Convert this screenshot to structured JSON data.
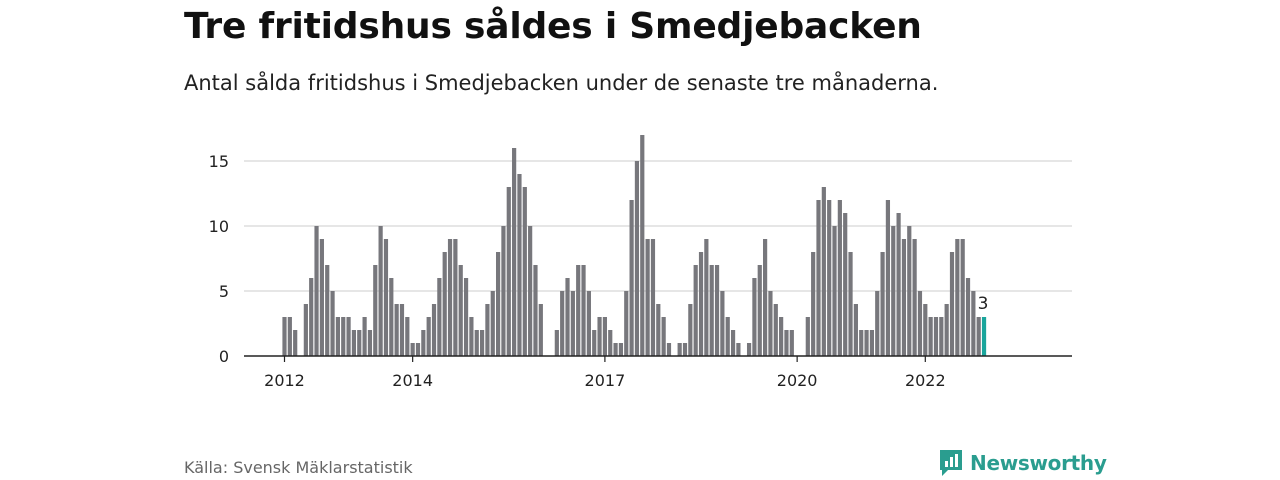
{
  "title": "Tre fritidshus såldes i Smedjebacken",
  "subtitle": "Antal sålda fritidshus i Smedjebacken under de senaste tre månaderna.",
  "source": "Källa: Svensk Mäklarstatistik",
  "brand": {
    "name": "Newsworthy",
    "icon": "newsworthy-logo-icon"
  },
  "colors": {
    "bar": "#77777c",
    "highlight": "#1aa59c",
    "grid": "#d8d8d8",
    "axis": "#222222",
    "brand": "#2a9d8f"
  },
  "chart_data": {
    "type": "bar",
    "x_start": "2012-01",
    "frequency": "monthly",
    "x_tick_labels": [
      "2012",
      "2014",
      "2017",
      "2020",
      "2022"
    ],
    "x_tick_months": [
      "2012-01",
      "2014-01",
      "2017-01",
      "2020-01",
      "2022-01"
    ],
    "y_ticks": [
      0,
      5,
      10,
      15
    ],
    "ylim": [
      0,
      18
    ],
    "grid": true,
    "values": [
      3,
      3,
      2,
      0,
      4,
      6,
      10,
      9,
      7,
      5,
      3,
      3,
      3,
      2,
      2,
      3,
      2,
      7,
      10,
      9,
      6,
      4,
      4,
      3,
      1,
      1,
      2,
      3,
      4,
      6,
      8,
      9,
      9,
      7,
      6,
      3,
      2,
      2,
      4,
      5,
      8,
      10,
      13,
      16,
      14,
      13,
      10,
      7,
      4,
      0,
      0,
      2,
      5,
      6,
      5,
      7,
      7,
      5,
      2,
      3,
      3,
      2,
      1,
      1,
      5,
      12,
      15,
      17,
      9,
      9,
      4,
      3,
      1,
      0,
      1,
      1,
      4,
      7,
      8,
      9,
      7,
      7,
      5,
      3,
      2,
      1,
      0,
      1,
      6,
      7,
      9,
      5,
      4,
      3,
      2,
      2,
      0,
      0,
      3,
      8,
      12,
      13,
      12,
      10,
      12,
      11,
      8,
      4,
      2,
      2,
      2,
      5,
      8,
      12,
      10,
      11,
      9,
      10,
      9,
      5,
      4,
      3,
      3,
      3,
      4,
      8,
      9,
      9,
      6,
      5,
      3,
      3
    ],
    "highlight_last": true,
    "annotation": "3"
  }
}
